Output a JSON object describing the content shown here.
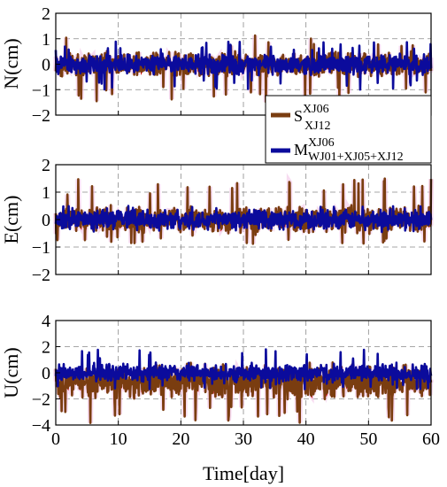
{
  "chart_data": [
    {
      "type": "line",
      "ylabel": "N(cm)",
      "xlim": [
        0,
        60
      ],
      "ylim": [
        -2,
        2
      ],
      "yticks": [
        -2,
        -1,
        0,
        1,
        2
      ],
      "xticks": [
        0,
        10,
        20,
        30,
        40,
        50,
        60
      ],
      "xtick_labels_shown": false,
      "grid": true,
      "legend": "bottom-right",
      "colors": {
        "S": "#7a3d10",
        "M": "#0b0b9c",
        "extreme": "#cc0000",
        "faint": "#f2c4e8"
      },
      "series": [
        {
          "label_main": "S",
          "label_sup": "XJ06",
          "label_sub": "XJ12",
          "color": "#7a3d10",
          "amplitude_cm": 0.55,
          "envelope": [
            -1.5,
            1.2
          ]
        },
        {
          "label_main": "M",
          "label_sup": "XJ06",
          "label_sub": "WJ01+XJ05+XJ12",
          "color": "#0b0b9c",
          "amplitude_cm": 0.45,
          "envelope": [
            -1.0,
            0.9
          ]
        }
      ]
    },
    {
      "type": "line",
      "ylabel": "E(cm)",
      "xlim": [
        0,
        60
      ],
      "ylim": [
        -2,
        2
      ],
      "yticks": [
        -2,
        -1,
        0,
        1,
        2
      ],
      "xticks": [
        0,
        10,
        20,
        30,
        40,
        50,
        60
      ],
      "xtick_labels_shown": false,
      "grid": true,
      "colors": {
        "S": "#7a3d10",
        "M": "#0b0b9c",
        "extreme": "#cc0000",
        "faint": "#f2c4e8"
      },
      "series": [
        {
          "label_main": "S",
          "color": "#7a3d10",
          "amplitude_cm": 0.55,
          "envelope": [
            -0.9,
            1.5
          ]
        },
        {
          "label_main": "M",
          "color": "#0b0b9c",
          "amplitude_cm": 0.4,
          "envelope": [
            -0.5,
            0.5
          ]
        }
      ]
    },
    {
      "type": "line",
      "ylabel": "U(cm)",
      "xlabel": "Time[day]",
      "xlim": [
        0,
        60
      ],
      "ylim": [
        -4,
        4
      ],
      "yticks": [
        -4,
        -2,
        0,
        2,
        4
      ],
      "xticks": [
        0,
        10,
        20,
        30,
        40,
        50,
        60
      ],
      "xtick_labels_shown": true,
      "grid": true,
      "colors": {
        "S": "#7a3d10",
        "M": "#0b0b9c",
        "extreme": "#cc0000",
        "faint": "#f2c4e8"
      },
      "series": [
        {
          "label_main": "S",
          "color": "#7a3d10",
          "amplitude_cm": 1.4,
          "offset_cm": -0.7,
          "envelope": [
            -3.9,
            0.8
          ]
        },
        {
          "label_main": "M",
          "color": "#0b0b9c",
          "amplitude_cm": 0.8,
          "envelope": [
            -1.3,
            1.8
          ]
        }
      ]
    }
  ]
}
